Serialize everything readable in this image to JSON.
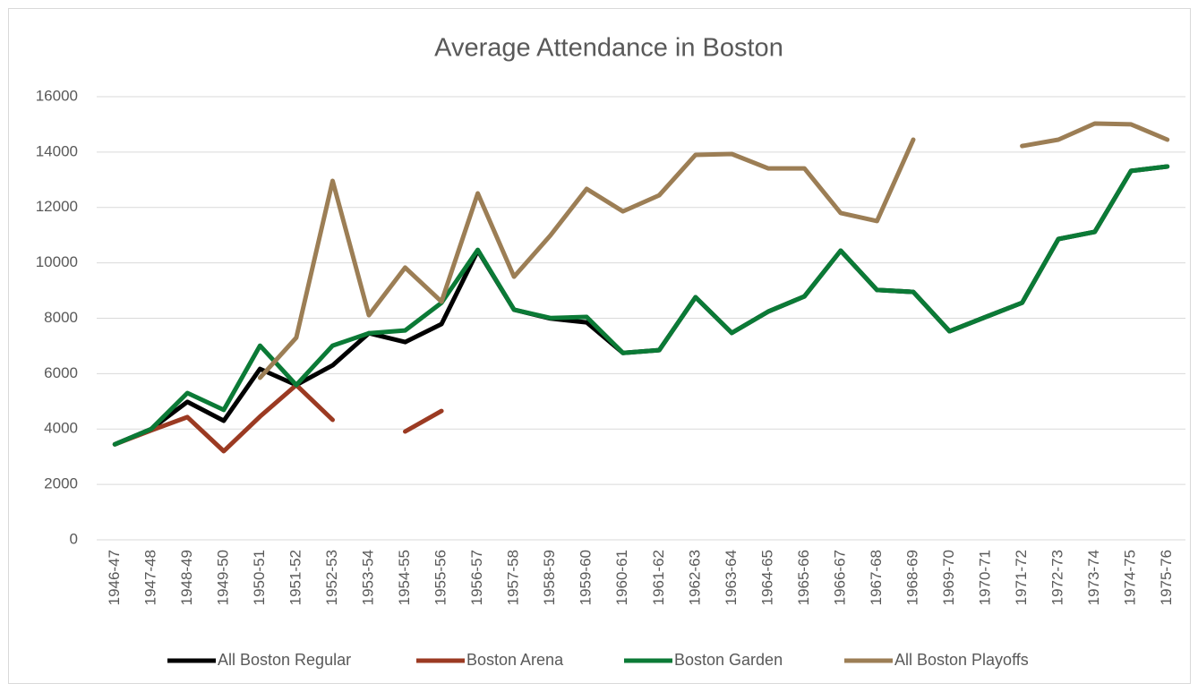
{
  "chart_data": {
    "type": "line",
    "title": "Average Attendance in Boston",
    "categories": [
      "1946-47",
      "1947-48",
      "1948-49",
      "1949-50",
      "1950-51",
      "1951-52",
      "1952-53",
      "1953-54",
      "1954-55",
      "1955-56",
      "1956-57",
      "1957-58",
      "1958-59",
      "1959-60",
      "1960-61",
      "1961-62",
      "1962-63",
      "1963-64",
      "1964-65",
      "1965-66",
      "1966-67",
      "1967-68",
      "1968-69",
      "1969-70",
      "1970-71",
      "1971-72",
      "1972-73",
      "1973-74",
      "1974-75",
      "1975-76"
    ],
    "series": [
      {
        "name": "All Boston Regular",
        "color": "#000000",
        "values": [
          3450,
          4000,
          4980,
          4300,
          6170,
          5590,
          6300,
          7460,
          7140,
          7790,
          10440,
          8310,
          7990,
          7850,
          6750,
          6850,
          8760,
          7470,
          8240,
          8790,
          10440,
          9020,
          8950,
          7530,
          8050,
          8560,
          10860,
          11120,
          13320,
          13480
        ]
      },
      {
        "name": "Boston Arena",
        "color": "#9b3a22",
        "values": [
          3450,
          3950,
          4430,
          3200,
          4450,
          5590,
          4330,
          null,
          3910,
          4650,
          null,
          null,
          null,
          null,
          null,
          null,
          null,
          null,
          null,
          null,
          null,
          null,
          null,
          null,
          null,
          null,
          null,
          null,
          null,
          null
        ]
      },
      {
        "name": "Boston Garden",
        "color": "#0b7a36",
        "values": [
          3450,
          4000,
          5300,
          4690,
          7010,
          5590,
          7010,
          7460,
          7560,
          8560,
          10470,
          8310,
          8010,
          8050,
          6750,
          6850,
          8760,
          7470,
          8240,
          8790,
          10440,
          9020,
          8950,
          7530,
          8050,
          8560,
          10860,
          11120,
          13320,
          13480
        ]
      },
      {
        "name": "All Boston Playoffs",
        "color": "#9c7e55",
        "values": [
          null,
          null,
          null,
          null,
          5850,
          7300,
          12960,
          8110,
          9830,
          8600,
          12510,
          9500,
          10990,
          12670,
          11860,
          12440,
          13900,
          13930,
          13410,
          13410,
          11800,
          11510,
          14450,
          null,
          null,
          14220,
          14450,
          15030,
          15000,
          14450
        ]
      }
    ],
    "ylim": [
      0,
      16000
    ],
    "yticks": [
      0,
      2000,
      4000,
      6000,
      8000,
      10000,
      12000,
      14000,
      16000
    ],
    "grid": true,
    "legend": "bottom"
  }
}
